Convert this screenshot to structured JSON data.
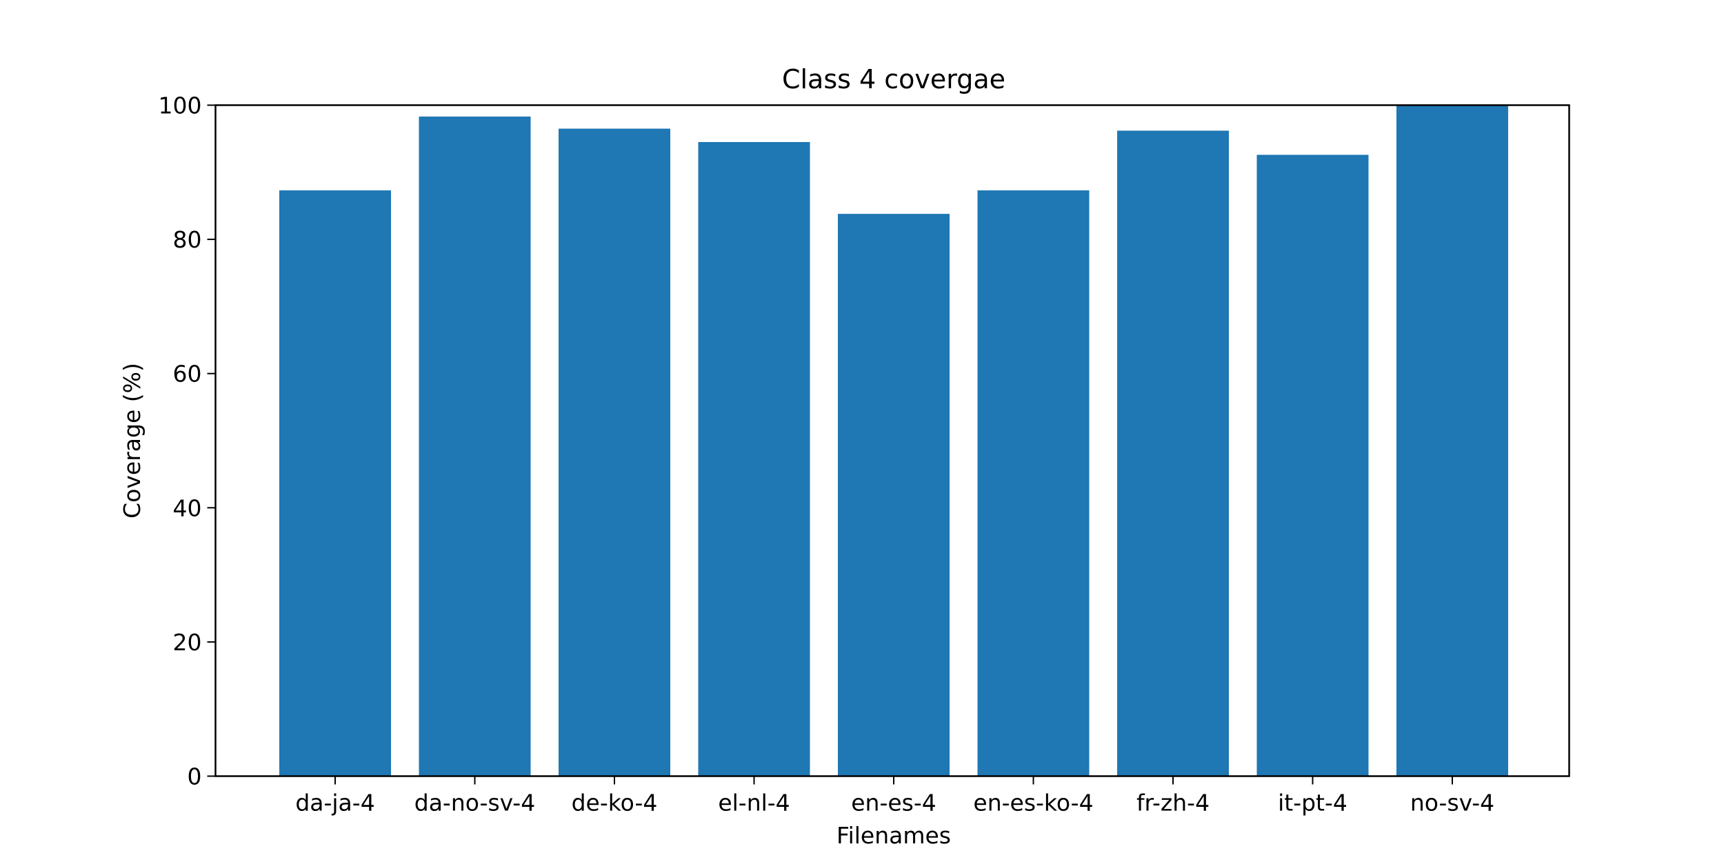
{
  "chart_data": {
    "type": "bar",
    "title": "Class 4 covergae",
    "xlabel": "Filenames",
    "ylabel": "Coverage (%)",
    "categories": [
      "da-ja-4",
      "da-no-sv-4",
      "de-ko-4",
      "el-nl-4",
      "en-es-4",
      "en-es-ko-4",
      "fr-zh-4",
      "it-pt-4",
      "no-sv-4"
    ],
    "values": [
      87.3,
      98.3,
      96.5,
      94.5,
      83.8,
      87.3,
      96.2,
      92.6,
      100.0
    ],
    "ylim": [
      0,
      100
    ],
    "yticks": [
      0,
      20,
      40,
      60,
      80,
      100
    ],
    "grid": false,
    "legend": "none",
    "bar_color": "#1f77b4"
  }
}
